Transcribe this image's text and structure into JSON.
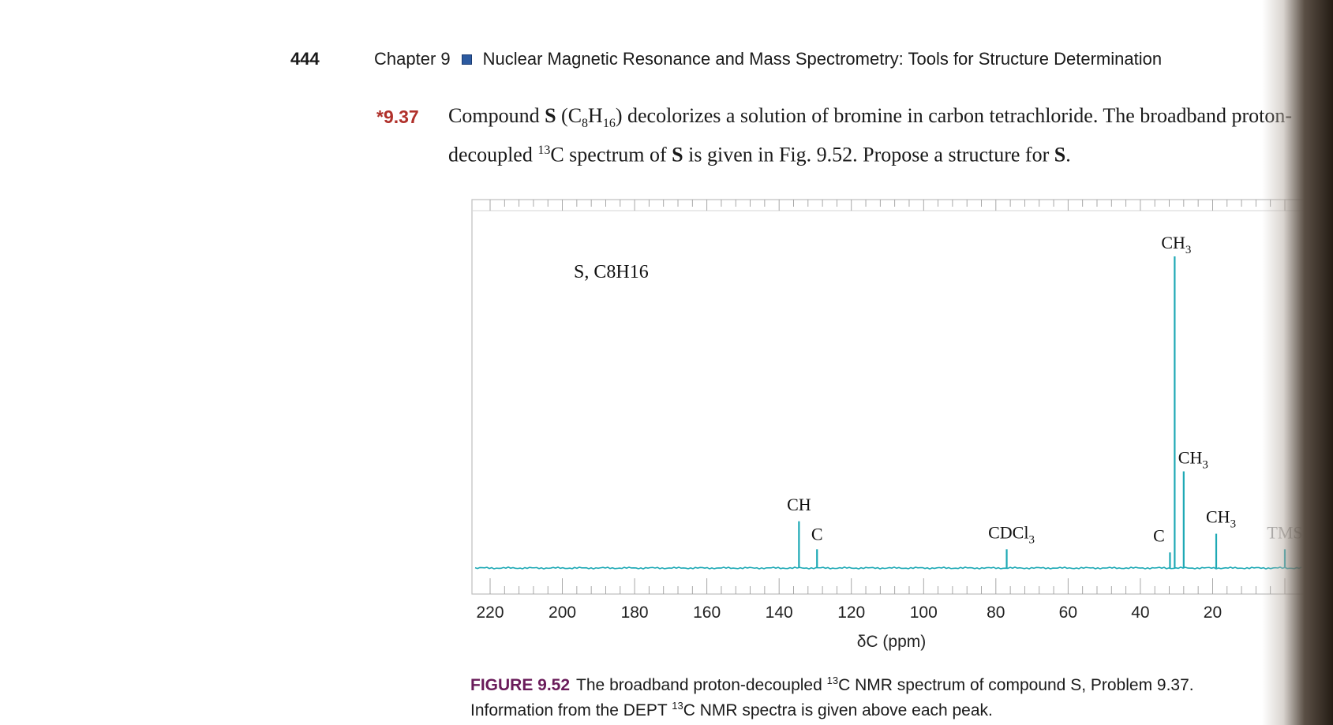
{
  "header": {
    "page_number": "444",
    "chapter": "Chapter 9",
    "chapter_title": "Nuclear Magnetic Resonance and Mass Spectrometry: Tools for Structure Determination"
  },
  "problem": {
    "number": "*9.37",
    "text_start": "Compound ",
    "compound": "S",
    "formula_open": " (C",
    "formula_sub1": "8",
    "formula_mid": "H",
    "formula_sub2": "16",
    "text_mid": ") decolorizes a solution of bromine in carbon tetrachloride. The broadband proton-decoupled ",
    "sup13": "13",
    "text_mid2": "C spectrum of ",
    "compound2": "S",
    "text_mid3": " is given in Fig. 9.52. Propose a structure for ",
    "compound3": "S",
    "text_end": "."
  },
  "chart_data": {
    "type": "line",
    "title": "S, C8H16",
    "xlabel": "δC (ppm)",
    "xlim": [
      220,
      0
    ],
    "x_ticks": [
      220,
      200,
      180,
      160,
      140,
      120,
      100,
      80,
      60,
      40,
      20
    ],
    "tms_label": "TMS",
    "peaks": [
      {
        "x": 134.5,
        "height": 0.15,
        "label": "CH"
      },
      {
        "x": 129.5,
        "height": 0.06,
        "label": "C"
      },
      {
        "x": 77.0,
        "height": 0.06,
        "label": "CDCl3"
      },
      {
        "x": 31.8,
        "height": 0.05,
        "label": "C"
      },
      {
        "x": 30.5,
        "height": 1.0,
        "label": "CH3"
      },
      {
        "x": 28.0,
        "height": 0.31,
        "label": "CH3"
      },
      {
        "x": 19.0,
        "height": 0.11,
        "label": "CH3"
      },
      {
        "x": 0.0,
        "height": 0.06,
        "label": "TMS"
      }
    ],
    "colors": {
      "trace": "#1ea9b5"
    }
  },
  "caption": {
    "figure_label": "FIGURE 9.52",
    "text_a": "The broadband proton-decoupled ",
    "sup": "13",
    "text_b": "C NMR spectrum of compound S, Problem 9.37.",
    "text_c": "Information from the DEPT ",
    "sup2": "13",
    "text_d": "C NMR spectra is given above each peak."
  }
}
